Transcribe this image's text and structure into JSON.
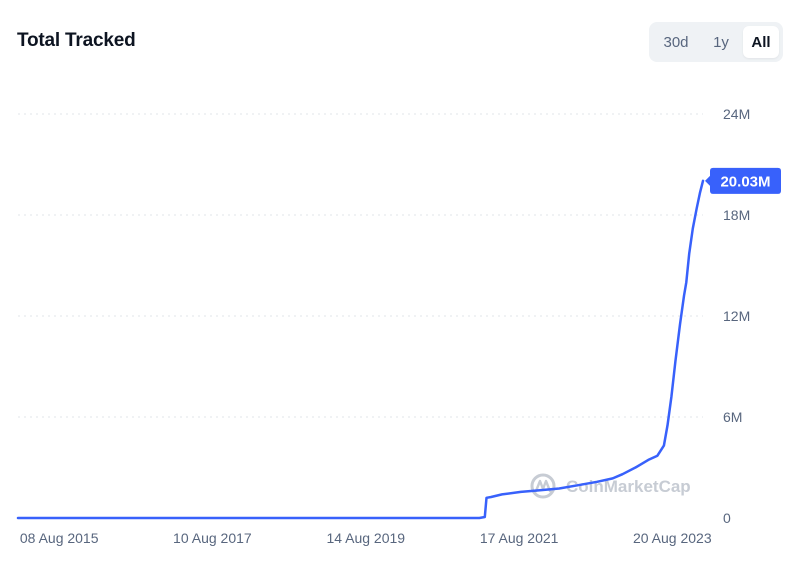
{
  "header": {
    "title": "Total Tracked"
  },
  "range_toggle": {
    "options": [
      "30d",
      "1y",
      "All"
    ],
    "selected": "All"
  },
  "watermark": {
    "text": "CoinMarketCap"
  },
  "colors": {
    "line": "#3861fb",
    "badge": "#3861fb",
    "grid": "#e1e4ea",
    "tick": "#58667e"
  },
  "chart_data": {
    "type": "line",
    "title": "Total Tracked",
    "xlabel": "",
    "ylabel": "",
    "x_range": [
      "2015-07-30",
      "2024-07-20"
    ],
    "ylim": [
      0,
      24000000
    ],
    "y_ticks": [
      {
        "value": 0,
        "label": "0"
      },
      {
        "value": 6000000,
        "label": "6M"
      },
      {
        "value": 12000000,
        "label": "12M"
      },
      {
        "value": 18000000,
        "label": "18M"
      },
      {
        "value": 24000000,
        "label": "24M"
      }
    ],
    "x_ticks": [
      {
        "date": "2015-08-08",
        "label": "08 Aug 2015"
      },
      {
        "date": "2017-08-10",
        "label": "10 Aug 2017"
      },
      {
        "date": "2019-08-14",
        "label": "14 Aug 2019"
      },
      {
        "date": "2021-08-17",
        "label": "17 Aug 2021"
      },
      {
        "date": "2023-08-20",
        "label": "20 Aug 2023"
      }
    ],
    "grid": true,
    "legend": "none",
    "last_value_label": "20.03M",
    "series": [
      {
        "points": [
          [
            "2015-07-30",
            0
          ],
          [
            "2021-08-15",
            0
          ],
          [
            "2021-09-10",
            60000
          ],
          [
            "2021-09-18",
            1200000
          ],
          [
            "2021-10-10",
            1250000
          ],
          [
            "2021-12-01",
            1400000
          ],
          [
            "2022-03-01",
            1550000
          ],
          [
            "2022-06-01",
            1650000
          ],
          [
            "2022-09-01",
            1750000
          ],
          [
            "2022-12-01",
            1950000
          ],
          [
            "2023-03-01",
            2150000
          ],
          [
            "2023-05-15",
            2350000
          ],
          [
            "2023-07-01",
            2600000
          ],
          [
            "2023-09-01",
            3000000
          ],
          [
            "2023-11-01",
            3450000
          ],
          [
            "2023-12-15",
            3700000
          ],
          [
            "2024-01-15",
            4300000
          ],
          [
            "2024-02-01",
            5500000
          ],
          [
            "2024-02-20",
            7200000
          ],
          [
            "2024-03-10",
            9300000
          ],
          [
            "2024-04-01",
            11500000
          ],
          [
            "2024-04-20",
            13200000
          ],
          [
            "2024-05-01",
            14000000
          ],
          [
            "2024-05-15",
            15700000
          ],
          [
            "2024-06-01",
            17200000
          ],
          [
            "2024-06-20",
            18400000
          ],
          [
            "2024-07-05",
            19300000
          ],
          [
            "2024-07-20",
            20030000
          ]
        ]
      }
    ]
  }
}
